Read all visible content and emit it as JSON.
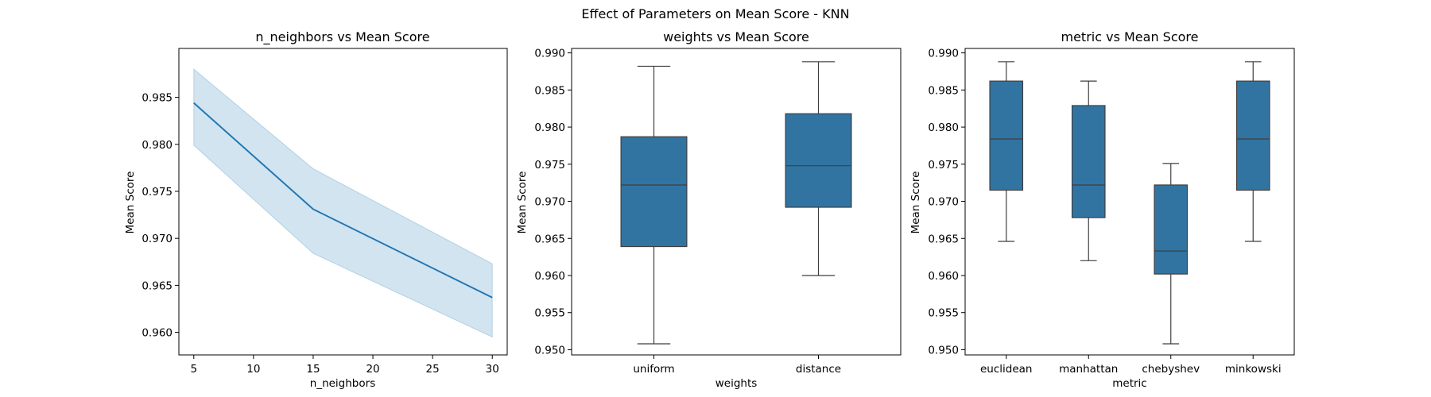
{
  "figure": {
    "suptitle": "Effect of Parameters on Mean Score - KNN"
  },
  "colors": {
    "primary": "#1f77b4",
    "box_fill": "#3274a1",
    "box_line": "#3f3f3f",
    "band": "#1f77b4"
  },
  "chart_data": [
    {
      "type": "line",
      "title": "n_neighbors vs Mean Score",
      "xlabel": "n_neighbors",
      "ylabel": "Mean Score",
      "xlim": [
        3.75,
        31.25
      ],
      "ylim": [
        0.9576,
        0.9902
      ],
      "x_ticks": [
        5,
        10,
        15,
        20,
        25,
        30
      ],
      "y_ticks": [
        0.96,
        0.965,
        0.97,
        0.975,
        0.98,
        0.985
      ],
      "series": [
        {
          "x": [
            5,
            15,
            30
          ],
          "y": [
            0.9844,
            0.9731,
            0.9637
          ],
          "ci_low": [
            0.9799,
            0.9684,
            0.9595
          ],
          "ci_high": [
            0.988,
            0.9774,
            0.9673
          ]
        }
      ],
      "grid": false
    },
    {
      "type": "box",
      "title": "weights vs Mean Score",
      "xlabel": "weights",
      "ylabel": "Mean Score",
      "ylim": [
        0.9493,
        0.9906
      ],
      "y_ticks": [
        0.95,
        0.955,
        0.96,
        0.965,
        0.97,
        0.975,
        0.98,
        0.985,
        0.99
      ],
      "categories": [
        "uniform",
        "distance"
      ],
      "boxes": [
        {
          "whisker_low": 0.9508,
          "q1": 0.9639,
          "median": 0.9722,
          "q3": 0.9787,
          "whisker_high": 0.9882
        },
        {
          "whisker_low": 0.96,
          "q1": 0.9692,
          "median": 0.9748,
          "q3": 0.9818,
          "whisker_high": 0.9888
        }
      ],
      "grid": false
    },
    {
      "type": "box",
      "title": "metric vs Mean Score",
      "xlabel": "metric",
      "ylabel": "Mean Score",
      "ylim": [
        0.9493,
        0.9906
      ],
      "y_ticks": [
        0.95,
        0.955,
        0.96,
        0.965,
        0.97,
        0.975,
        0.98,
        0.985,
        0.99
      ],
      "categories": [
        "euclidean",
        "manhattan",
        "chebyshev",
        "minkowski"
      ],
      "boxes": [
        {
          "whisker_low": 0.9646,
          "q1": 0.9715,
          "median": 0.9784,
          "q3": 0.9862,
          "whisker_high": 0.9888
        },
        {
          "whisker_low": 0.962,
          "q1": 0.9678,
          "median": 0.9722,
          "q3": 0.9829,
          "whisker_high": 0.9862
        },
        {
          "whisker_low": 0.9508,
          "q1": 0.9602,
          "median": 0.9633,
          "q3": 0.9722,
          "whisker_high": 0.9751
        },
        {
          "whisker_low": 0.9646,
          "q1": 0.9715,
          "median": 0.9784,
          "q3": 0.9862,
          "whisker_high": 0.9888
        }
      ],
      "grid": false
    }
  ]
}
